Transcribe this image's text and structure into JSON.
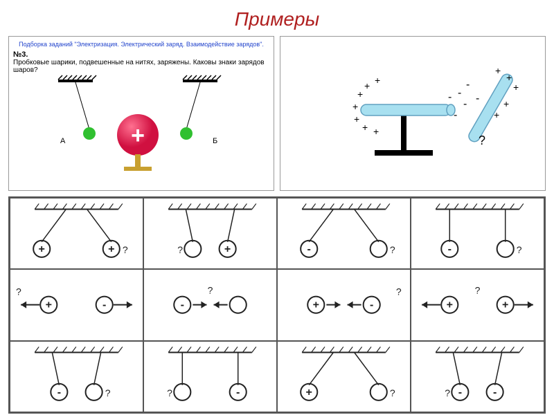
{
  "title": "Примеры",
  "title_color": "#b02020",
  "top_left": {
    "link": "Подборка заданий \"Электризация. Электрический заряд. Взаимодействие зарядов\".",
    "link_color": "#2244cc",
    "task_num": "№3.",
    "task_text": "Пробковые шарики, подвешенные на нитях, заряжены. Каковы знаки зарядов шаров?",
    "labels": {
      "A": "А",
      "B": "Б"
    },
    "center_ball": {
      "color": "#d01040",
      "highlight": "#ff7090",
      "sign": "+",
      "sign_color": "#ffffff"
    },
    "side_balls": {
      "color": "#30c030"
    },
    "ceiling_color": "#000000",
    "stand_color": "#c8a030"
  },
  "top_right": {
    "rod_fill": "#a8e0f0",
    "rod_stroke": "#60a0c0",
    "stand_color": "#000000",
    "q": "?",
    "plus": "+",
    "minus": "-"
  },
  "grid": {
    "stroke": "#222222",
    "cells": [
      {
        "type": "pendulum",
        "thread": "diverge",
        "balls": [
          {
            "sign": "+"
          },
          {
            "sign": "+"
          }
        ],
        "q_after": true
      },
      {
        "type": "pendulum",
        "thread": "converge",
        "balls": [
          {
            "sign": ""
          },
          {
            "sign": "+"
          }
        ],
        "q_before": true
      },
      {
        "type": "pendulum",
        "thread": "diverge",
        "balls": [
          {
            "sign": "-"
          },
          {
            "sign": ""
          }
        ],
        "q_after": true
      },
      {
        "type": "pendulum",
        "thread": "vertical",
        "balls": [
          {
            "sign": "-"
          },
          {
            "sign": ""
          }
        ],
        "q_after": true
      },
      {
        "type": "arrows",
        "dir": "apart",
        "balls": [
          {
            "sign": "+"
          },
          {
            "sign": "-"
          }
        ],
        "q_before": true
      },
      {
        "type": "arrows",
        "dir": "together",
        "balls": [
          {
            "sign": "-"
          },
          {
            "sign": ""
          }
        ],
        "q_mid": true
      },
      {
        "type": "arrows",
        "dir": "together",
        "balls": [
          {
            "sign": "+"
          },
          {
            "sign": "-"
          }
        ],
        "q_after": true
      },
      {
        "type": "arrows",
        "dir": "apart",
        "balls": [
          {
            "sign": "+"
          },
          {
            "sign": "+"
          }
        ],
        "q_mid": true
      },
      {
        "type": "pendulum",
        "thread": "converge",
        "balls": [
          {
            "sign": "-"
          },
          {
            "sign": ""
          }
        ],
        "q_after": true
      },
      {
        "type": "pendulum",
        "thread": "vertical",
        "balls": [
          {
            "sign": ""
          },
          {
            "sign": "-"
          }
        ],
        "q_before": true
      },
      {
        "type": "pendulum",
        "thread": "diverge",
        "balls": [
          {
            "sign": "+"
          },
          {
            "sign": ""
          }
        ],
        "q_after": true
      },
      {
        "type": "pendulum",
        "thread": "converge",
        "balls": [
          {
            "sign": "-"
          },
          {
            "sign": "-"
          }
        ],
        "q_before": true
      }
    ]
  }
}
